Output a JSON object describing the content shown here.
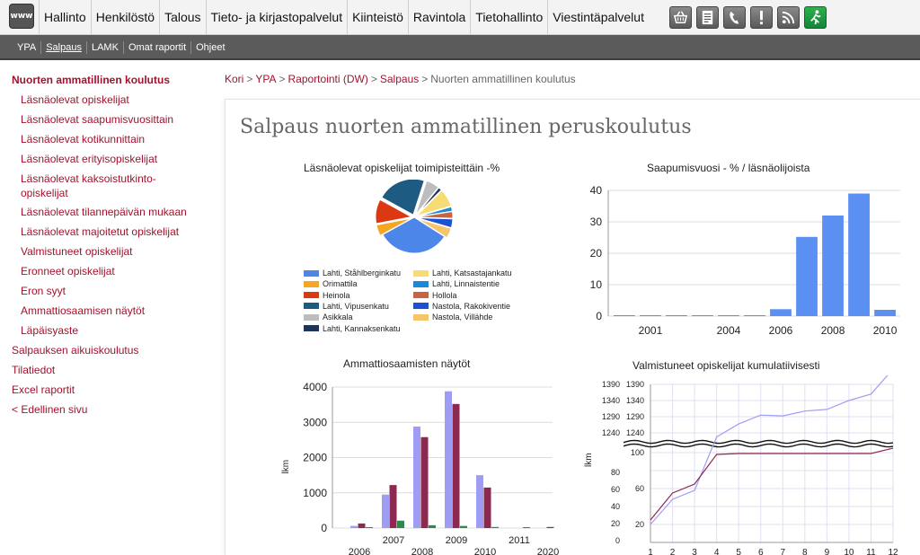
{
  "topbar": {
    "logo": "www",
    "menu": [
      "Hallinto",
      "Henkilöstö",
      "Talous",
      "Tieto- ja kirjastopalvelut",
      "Kiinteistö",
      "Ravintola",
      "Tietohallinto",
      "Viestintäpalvelut"
    ],
    "icons": [
      "basket-icon",
      "document-icon",
      "phone-icon",
      "exclamation-icon",
      "rss-icon",
      "exit-icon"
    ]
  },
  "subbar": {
    "items": [
      "YPA",
      "Salpaus",
      "LAMK",
      "Omat raportit",
      "Ohjeet"
    ],
    "active": "Salpaus"
  },
  "nav": {
    "items": [
      "Nuorten ammatillinen koulutus",
      "Läsnäolevat opiskelijat",
      "Läsnäolevat saapumisvuosittain",
      "Läsnäolevat kotikunnittain",
      "Läsnäolevat erityisopiskelijat",
      "Läsnäolevat kaksoistutkinto-opiskelijat",
      "Läsnäolevat tilannepäivän mukaan",
      "Läsnäolevat majoitetut opiskelijat",
      "Valmistuneet opiskelijat",
      "Eronneet opiskelijat",
      "Eron syyt",
      "Ammattiosaamisen näytöt",
      "Läpäisyaste",
      "Salpauksen aikuiskoulutus",
      "Tilatiedot",
      "Excel raportit",
      "< Edellinen sivu"
    ],
    "two_line": [
      "Läsnäolevat kaksoistutkinto-",
      "opiskelijat"
    ]
  },
  "breadcrumb": {
    "links": [
      "Kori",
      "YPA",
      "Raportointi (DW)",
      "Salpaus"
    ],
    "current": "Nuorten ammatillinen koulutus",
    "separator": ">"
  },
  "page_title": "Salpaus nuorten ammatillinen peruskoulutus",
  "colors": {
    "nav_link": "#a1122c",
    "bar_blue": "#5b8ff2",
    "light_purple": "#9f9df3",
    "maroon": "#8d2850",
    "green": "#2d8a4c"
  },
  "chart_data": [
    {
      "type": "pie",
      "title": "Läsnäolevat opiskelijat toimipisteittäin -%",
      "categories": [
        "Lahti, Ståhlberginkatu",
        "Orimattila",
        "Heinola",
        "Lahti, Vipusenkatu",
        "Asikkala",
        "Lahti, Kannaksenkatu",
        "Lahti, Katsastajankatu",
        "Lahti, Linnaistentie",
        "Hollola",
        "Nastola, Rakokiventie",
        "Nastola, Villähde"
      ],
      "values": [
        33,
        5,
        11,
        22,
        6,
        1.5,
        8,
        2,
        3,
        4,
        4.5
      ],
      "colors": [
        "#4b86e8",
        "#f5a623",
        "#dc3912",
        "#1e5b82",
        "#bdbdbd",
        "#1d3557",
        "#f6dc73",
        "#1b89d6",
        "#c86442",
        "#1a52cf",
        "#f4c56b"
      ],
      "legend_position": "bottom"
    },
    {
      "type": "bar",
      "title": "Saapumisvuosi - % / läsnäolijoista",
      "x": [
        2000,
        2001,
        2002,
        2003,
        2004,
        2005,
        2006,
        2007,
        2008,
        2009,
        2010
      ],
      "values": [
        0.2,
        0.2,
        0.2,
        0.2,
        0.2,
        0.2,
        2.2,
        25.2,
        32,
        39,
        2
      ],
      "x_tick_labels": [
        "2001",
        "2004",
        "2006",
        "2008",
        "2010"
      ],
      "y_ticks": [
        "0",
        "10",
        "20",
        "30",
        "40"
      ],
      "ylim": [
        0,
        40
      ],
      "grid": true
    },
    {
      "type": "bar",
      "title": "Ammattiosaamisten näytöt",
      "ylabel": "lkm",
      "categories": [
        "2006",
        "2007",
        "2008",
        "2009",
        "2010",
        "2011",
        "2020"
      ],
      "x_tick_labels_upper": [
        "2007",
        "2009",
        "2011"
      ],
      "x_tick_labels_lower": [
        "2006",
        "2008",
        "2010",
        "2020"
      ],
      "y_ticks": [
        "0",
        "1000",
        "2000",
        "3000",
        "4000"
      ],
      "ylim": [
        0,
        4000
      ],
      "series": [
        {
          "values": [
            60,
            950,
            2880,
            3880,
            1500,
            0,
            0
          ],
          "color": "#9f9df3"
        },
        {
          "values": [
            130,
            1220,
            2580,
            3520,
            1150,
            0,
            30
          ],
          "color": "#8d2850"
        },
        {
          "values": [
            10,
            210,
            80,
            60,
            30,
            20,
            0
          ],
          "color": "#2d8a4c"
        }
      ],
      "grid": true
    },
    {
      "type": "line",
      "title": "Valmistuneet opiskelijat kumulatiivisesti",
      "ylabel": "lkm",
      "x": [
        1,
        2,
        3,
        4,
        5,
        6,
        7,
        8,
        9,
        10,
        11,
        12
      ],
      "y_tick_labels_left": [
        "0",
        "20",
        "40",
        "60",
        "80",
        "1240",
        "1290",
        "1340",
        "1390"
      ],
      "y_tick_labels_right": [
        "20",
        "60",
        "100",
        "1240",
        "1290",
        "1340",
        "1390"
      ],
      "series": [
        {
          "values": [
            20,
            48,
            58,
            115,
            131,
            142,
            141,
            147,
            149,
            160,
            168,
            199
          ],
          "color": "#9f9df3"
        },
        {
          "values": [
            25,
            55,
            65,
            98,
            99,
            99,
            99,
            99,
            99,
            99,
            99,
            101
          ],
          "color": "#8d2850"
        }
      ],
      "axis_break": true,
      "grid": true
    }
  ]
}
